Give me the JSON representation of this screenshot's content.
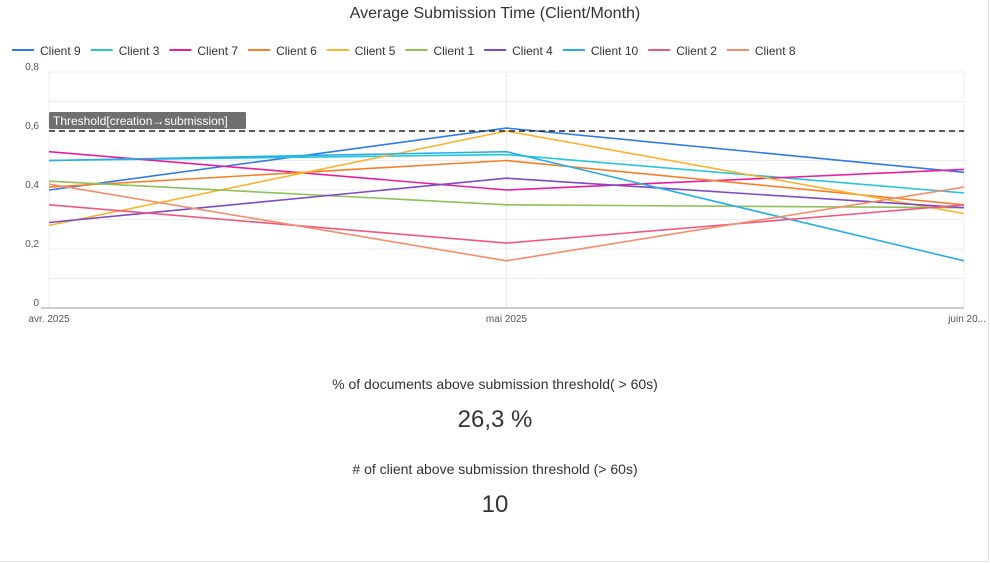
{
  "chart_data": {
    "type": "line",
    "title": "Average Submission Time (Client/Month)",
    "xlabel": "",
    "ylabel": "",
    "categories": [
      "avr. 2025",
      "mai 2025",
      "juin 20..."
    ],
    "ylim": [
      0,
      0.8
    ],
    "yticks": [
      "0",
      "0,2",
      "0,4",
      "0,6",
      "0,8"
    ],
    "grid": true,
    "legend_position": "top",
    "series": [
      {
        "name": "Client 9",
        "color": "#2f7ae5",
        "values": [
          0.4,
          0.61,
          0.46
        ]
      },
      {
        "name": "Client 3",
        "color": "#26c6da",
        "values": [
          0.5,
          0.52,
          0.39
        ]
      },
      {
        "name": "Client 7",
        "color": "#e91e9c",
        "values": [
          0.53,
          0.4,
          0.47
        ]
      },
      {
        "name": "Client 6",
        "color": "#f4802a",
        "values": [
          0.41,
          0.5,
          0.35
        ]
      },
      {
        "name": "Client 5",
        "color": "#fbb32c",
        "values": [
          0.28,
          0.6,
          0.32
        ]
      },
      {
        "name": "Client 1",
        "color": "#8fc05b",
        "values": [
          0.43,
          0.35,
          0.34
        ]
      },
      {
        "name": "Client 4",
        "color": "#7b4cc4",
        "values": [
          0.29,
          0.44,
          0.34
        ]
      },
      {
        "name": "Client 10",
        "color": "#27aee8",
        "values": [
          0.5,
          0.53,
          0.16
        ]
      },
      {
        "name": "Client 2",
        "color": "#f0587f",
        "values": [
          0.35,
          0.22,
          0.35
        ]
      },
      {
        "name": "Client 8",
        "color": "#f68d6a",
        "values": [
          0.42,
          0.16,
          0.41
        ]
      }
    ],
    "threshold": {
      "label": "Threshold[creation→submission]",
      "value": 0.6,
      "color": "#222222"
    }
  },
  "kpis": {
    "pct_label": "% of documents above submission threshold( > 60s)",
    "pct_value": "26,3 %",
    "count_label": "# of client above submission threshold (> 60s)",
    "count_value": "10"
  }
}
